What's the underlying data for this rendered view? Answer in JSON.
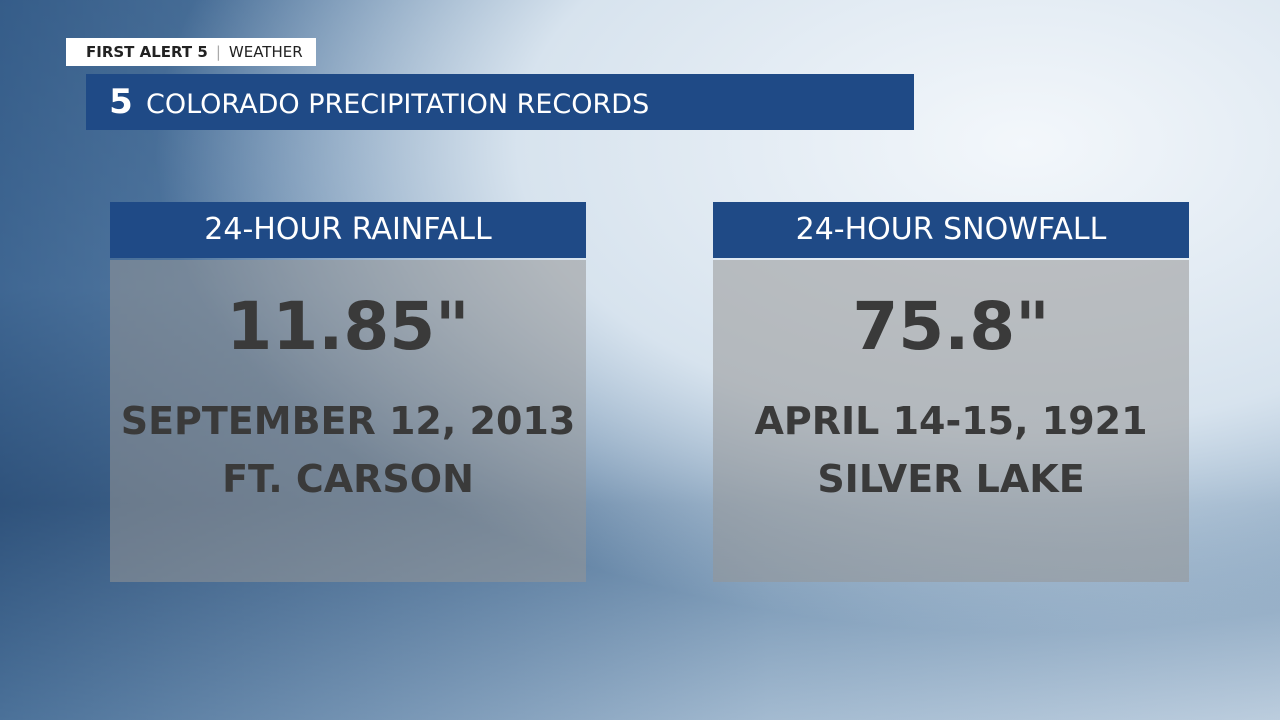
{
  "header": {
    "brand": "FIRST ALERT 5",
    "section": "WEATHER",
    "logo": "5",
    "title": "COLORADO PRECIPITATION RECORDS"
  },
  "cards": [
    {
      "title": "24-HOUR RAINFALL",
      "value": "11.85\"",
      "date": "SEPTEMBER 12, 2013",
      "place": "FT. CARSON"
    },
    {
      "title": "24-HOUR SNOWFALL",
      "value": "75.8\"",
      "date": "APRIL 14-15, 1921",
      "place": "SILVER LAKE"
    }
  ]
}
